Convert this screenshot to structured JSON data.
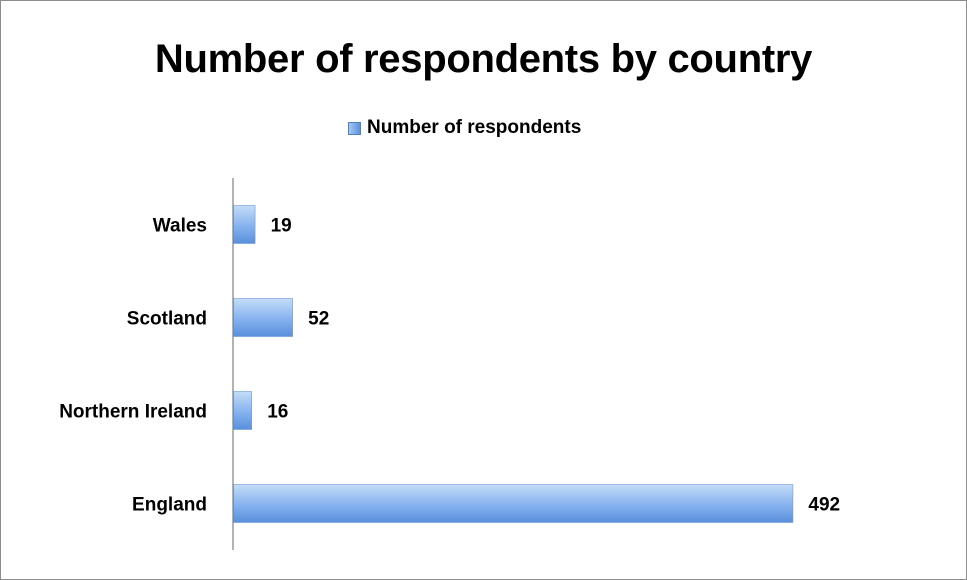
{
  "chart_data": {
    "type": "bar",
    "orientation": "horizontal",
    "title": "Number of respondents by country",
    "categories": [
      "England",
      "Northern Ireland",
      "Scotland",
      "Wales"
    ],
    "series": [
      {
        "name": "Number of respondents",
        "values": [
          492,
          16,
          52,
          19
        ],
        "color": "#6a9ee6"
      }
    ],
    "xlim": [
      0,
      540
    ],
    "grid": false,
    "legend_position": "top",
    "data_labels": true
  },
  "colors": {
    "bar_light": "#b7d3f5",
    "bar_dark": "#5a8fdc",
    "axis": "#808080",
    "frame_border": "#8c8c8c"
  }
}
